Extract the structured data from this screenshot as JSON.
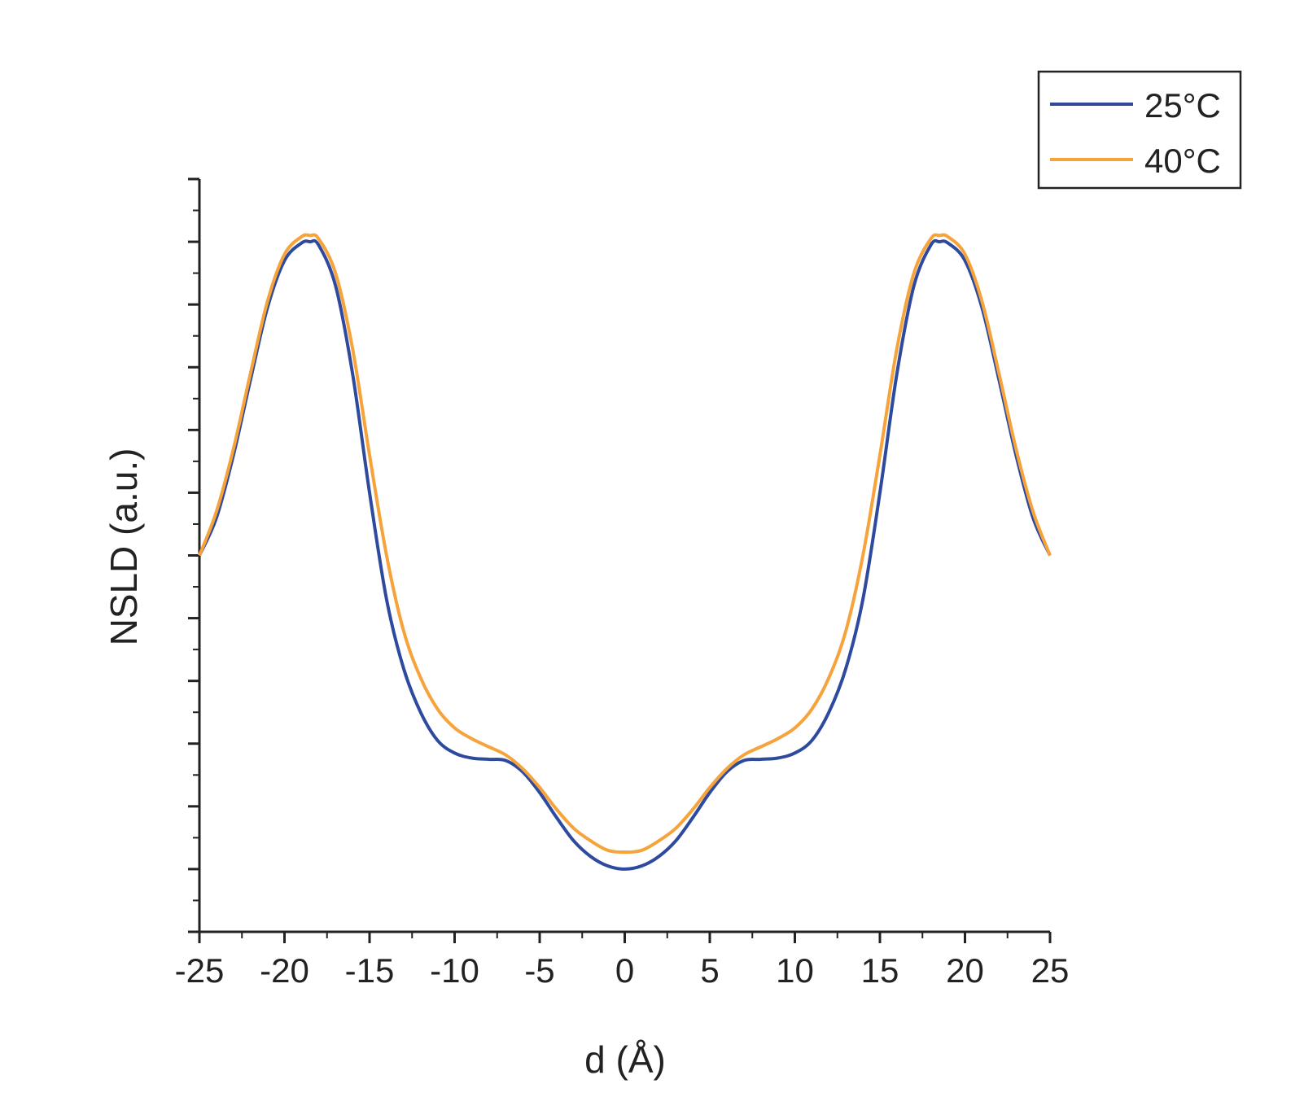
{
  "chart_data": {
    "type": "line",
    "xlabel": "d (Å)",
    "ylabel": "NSLD (a.u.)",
    "xlim": [
      -25,
      25
    ],
    "ylim": [
      0,
      12
    ],
    "x_ticks": [
      -25,
      -20,
      -15,
      -10,
      -5,
      0,
      5,
      10,
      15,
      20,
      25
    ],
    "y_tick_labels": false,
    "grid": false,
    "legend": "top-right",
    "series": [
      {
        "name": "25°C",
        "color": "#2e4a9e",
        "points": [
          [
            -25,
            6.0
          ],
          [
            -24,
            6.6
          ],
          [
            -23,
            7.6
          ],
          [
            -22,
            8.8
          ],
          [
            -21,
            9.95
          ],
          [
            -20,
            10.7
          ],
          [
            -19,
            10.98
          ],
          [
            -18.5,
            11.0
          ],
          [
            -18,
            10.95
          ],
          [
            -17,
            10.3
          ],
          [
            -16,
            8.9
          ],
          [
            -15,
            7.0
          ],
          [
            -14,
            5.3
          ],
          [
            -13,
            4.2
          ],
          [
            -12,
            3.5
          ],
          [
            -11,
            3.05
          ],
          [
            -10,
            2.85
          ],
          [
            -9,
            2.77
          ],
          [
            -8,
            2.75
          ],
          [
            -7,
            2.73
          ],
          [
            -6,
            2.55
          ],
          [
            -5,
            2.22
          ],
          [
            -4,
            1.82
          ],
          [
            -3,
            1.45
          ],
          [
            -2,
            1.2
          ],
          [
            -1,
            1.05
          ],
          [
            0,
            1.0
          ],
          [
            1,
            1.05
          ],
          [
            2,
            1.2
          ],
          [
            3,
            1.45
          ],
          [
            4,
            1.82
          ],
          [
            5,
            2.22
          ],
          [
            6,
            2.55
          ],
          [
            7,
            2.73
          ],
          [
            8,
            2.75
          ],
          [
            9,
            2.77
          ],
          [
            10,
            2.85
          ],
          [
            11,
            3.05
          ],
          [
            12,
            3.5
          ],
          [
            13,
            4.2
          ],
          [
            14,
            5.3
          ],
          [
            15,
            7.0
          ],
          [
            16,
            8.9
          ],
          [
            17,
            10.3
          ],
          [
            18,
            10.95
          ],
          [
            18.5,
            11.0
          ],
          [
            19,
            10.98
          ],
          [
            20,
            10.7
          ],
          [
            21,
            9.95
          ],
          [
            22,
            8.8
          ],
          [
            23,
            7.6
          ],
          [
            24,
            6.6
          ],
          [
            25,
            6.0
          ]
        ]
      },
      {
        "name": "40°C",
        "color": "#f5a33a",
        "points": [
          [
            -25,
            6.0
          ],
          [
            -24,
            6.7
          ],
          [
            -23,
            7.7
          ],
          [
            -22,
            8.9
          ],
          [
            -21,
            10.05
          ],
          [
            -20,
            10.8
          ],
          [
            -19,
            11.08
          ],
          [
            -18.5,
            11.1
          ],
          [
            -18,
            11.05
          ],
          [
            -17,
            10.5
          ],
          [
            -16,
            9.3
          ],
          [
            -15,
            7.6
          ],
          [
            -14,
            6.0
          ],
          [
            -13,
            4.8
          ],
          [
            -12,
            4.05
          ],
          [
            -11,
            3.55
          ],
          [
            -10,
            3.25
          ],
          [
            -9,
            3.08
          ],
          [
            -8,
            2.95
          ],
          [
            -7,
            2.82
          ],
          [
            -6,
            2.6
          ],
          [
            -5,
            2.3
          ],
          [
            -4,
            1.95
          ],
          [
            -3,
            1.65
          ],
          [
            -2,
            1.45
          ],
          [
            -1,
            1.3
          ],
          [
            0,
            1.27
          ],
          [
            1,
            1.3
          ],
          [
            2,
            1.45
          ],
          [
            3,
            1.65
          ],
          [
            4,
            1.95
          ],
          [
            5,
            2.3
          ],
          [
            6,
            2.6
          ],
          [
            7,
            2.82
          ],
          [
            8,
            2.95
          ],
          [
            9,
            3.08
          ],
          [
            10,
            3.25
          ],
          [
            11,
            3.55
          ],
          [
            12,
            4.05
          ],
          [
            13,
            4.8
          ],
          [
            14,
            6.0
          ],
          [
            15,
            7.6
          ],
          [
            16,
            9.3
          ],
          [
            17,
            10.5
          ],
          [
            18,
            11.05
          ],
          [
            18.5,
            11.1
          ],
          [
            19,
            11.08
          ],
          [
            20,
            10.8
          ],
          [
            21,
            10.05
          ],
          [
            22,
            8.9
          ],
          [
            23,
            7.7
          ],
          [
            24,
            6.7
          ],
          [
            25,
            6.0
          ]
        ]
      }
    ]
  }
}
